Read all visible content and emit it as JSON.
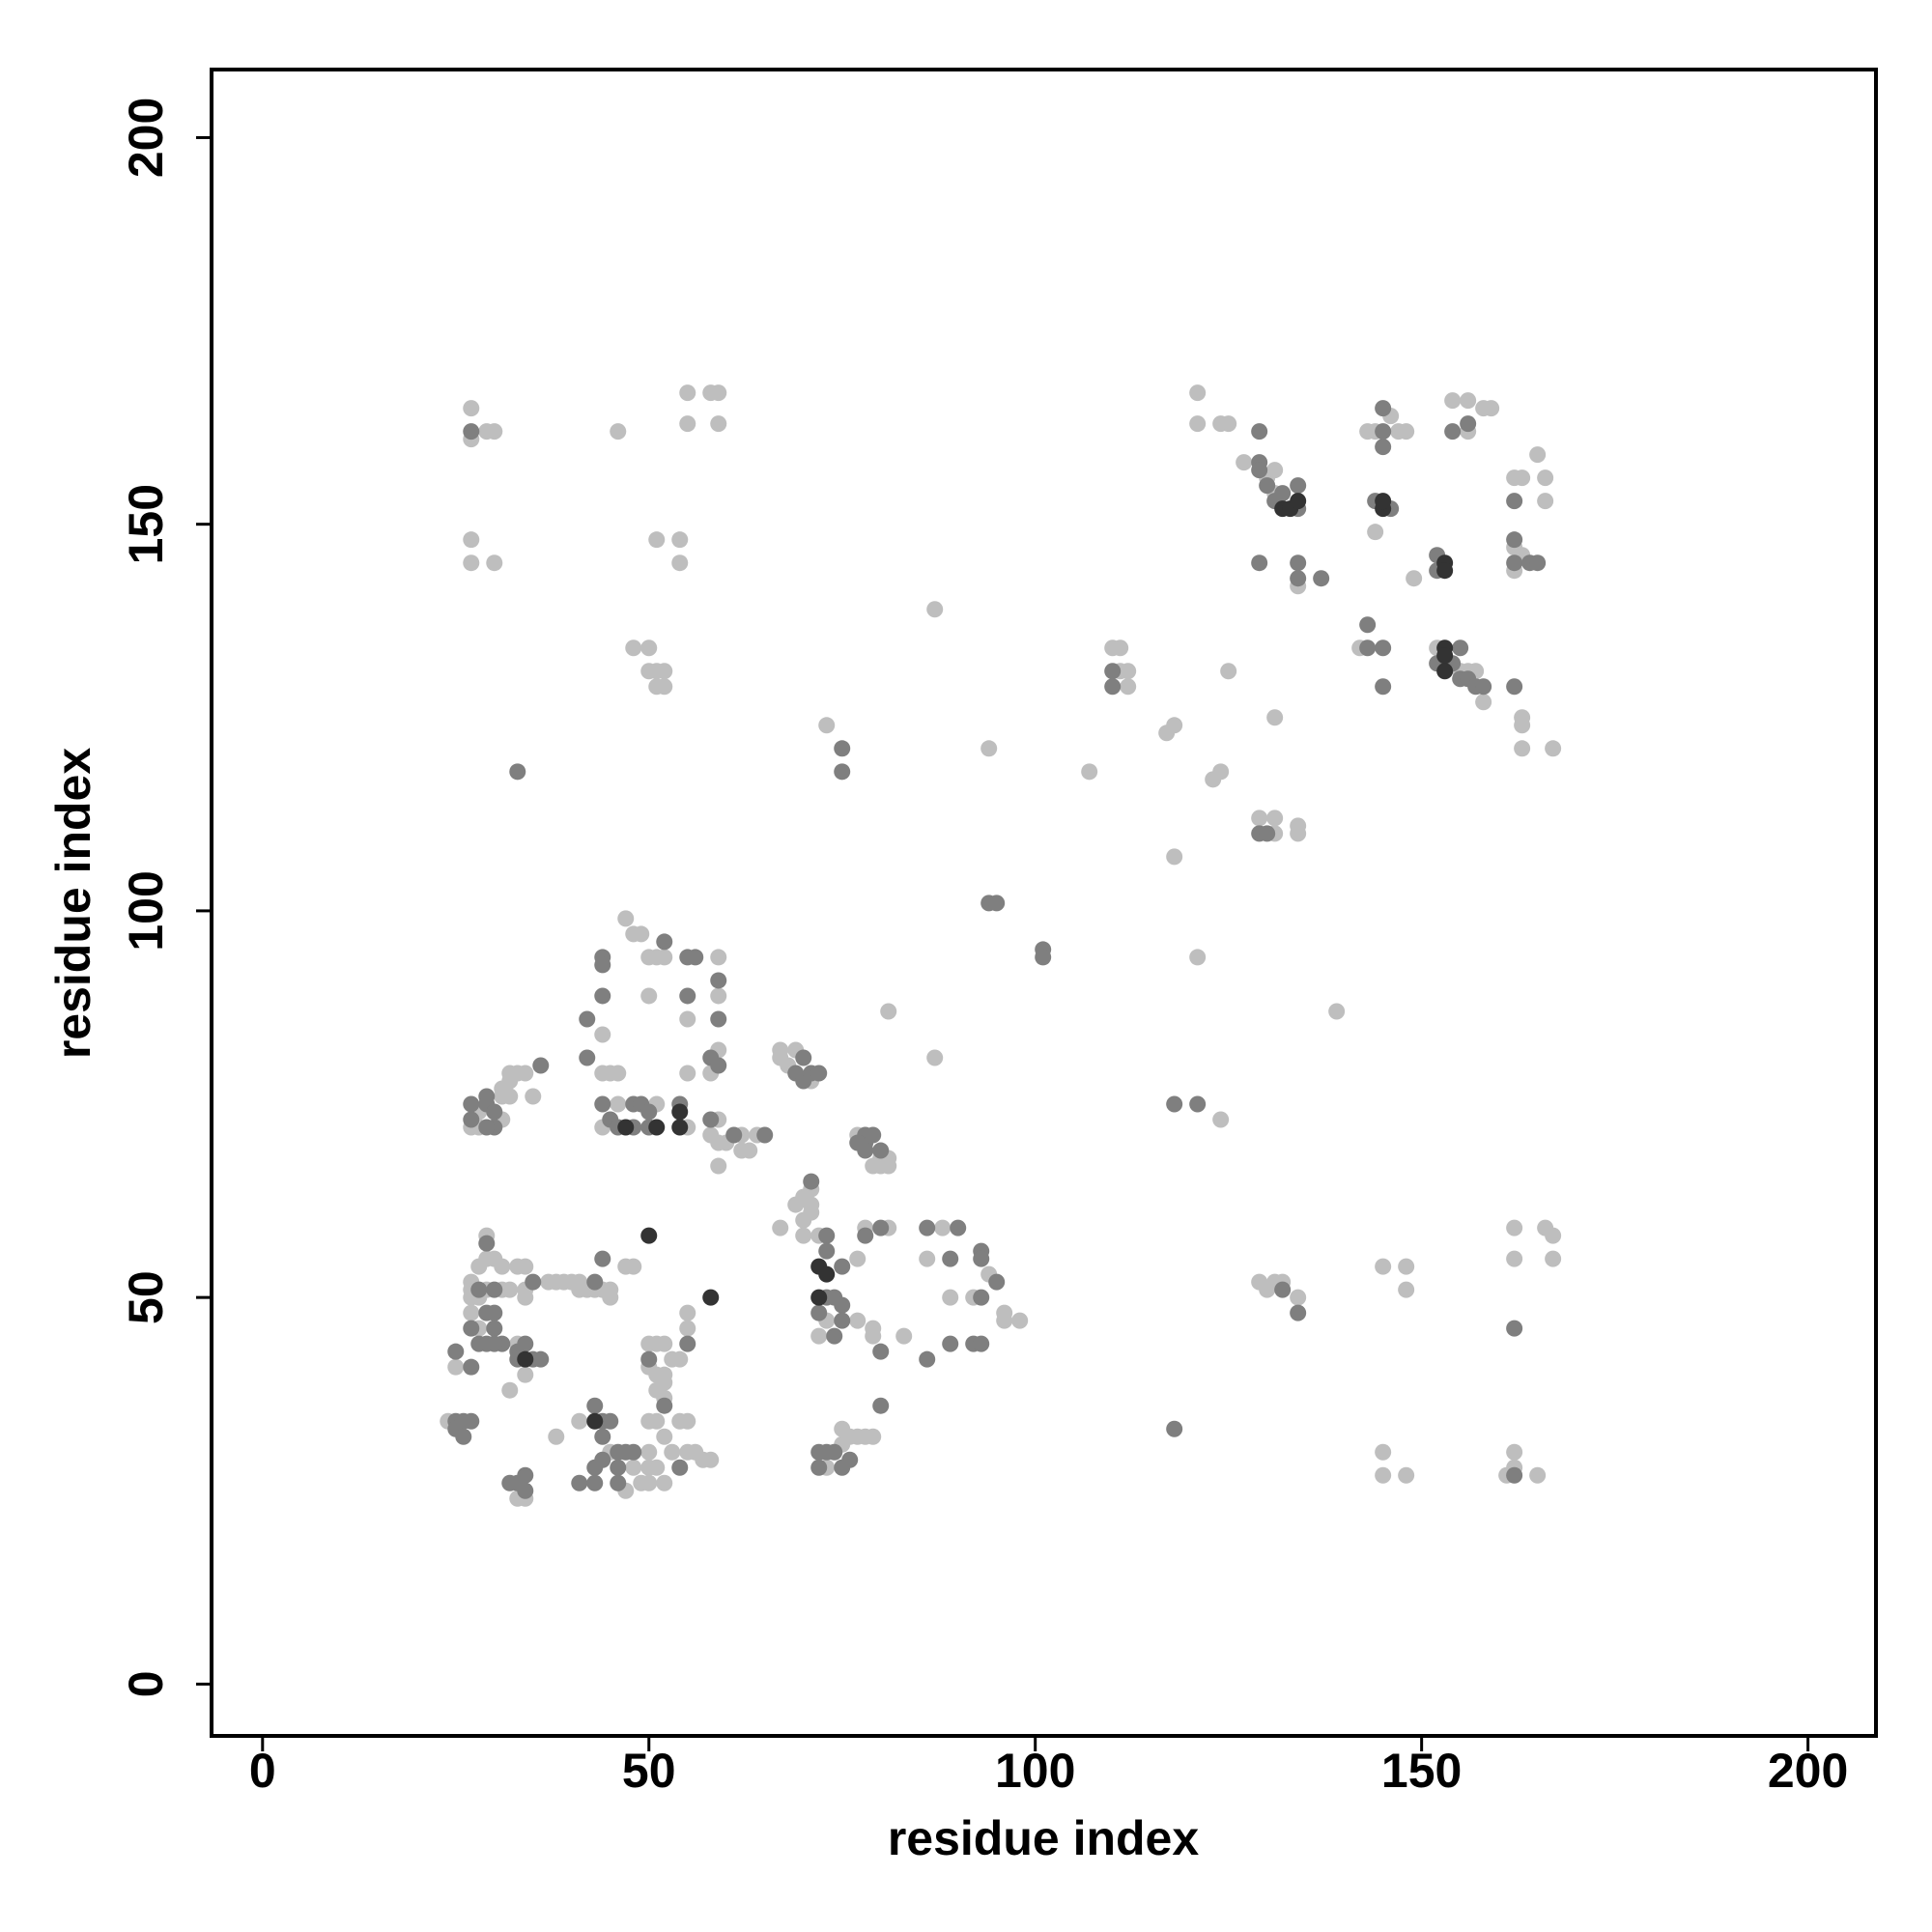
{
  "chart_data": {
    "type": "scatter",
    "xlabel": "residue index",
    "ylabel": "residue index",
    "xlim": [
      -6.6,
      208.8
    ],
    "ylim": [
      -6.7,
      208.8
    ],
    "xticks": [
      0,
      50,
      100,
      150,
      200
    ],
    "yticks": [
      0,
      50,
      100,
      150,
      200
    ],
    "grid": false,
    "series": [
      {
        "color": "#bebebe",
        "x": [
          27,
          27,
          29,
          30,
          46,
          55,
          55,
          58,
          59,
          59,
          27,
          27,
          30,
          51,
          54,
          54,
          48,
          50,
          50,
          51,
          52,
          51,
          52,
          73,
          87,
          94,
          107,
          124,
          121,
          118,
          81,
          87,
          139,
          117,
          118,
          123,
          124,
          125,
          110,
          111,
          111,
          112,
          112,
          129,
          131,
          131,
          134,
          134,
          131,
          121,
          121,
          124,
          125,
          127,
          130,
          131,
          131,
          134,
          143,
          144,
          146,
          147,
          148,
          144,
          149,
          142,
          152,
          155,
          156,
          157,
          158,
          154,
          156,
          156,
          158,
          159,
          162,
          163,
          165,
          166,
          166,
          162,
          162,
          163,
          163,
          163,
          163,
          167,
          162,
          162,
          166,
          167,
          167,
          145,
          148,
          148,
          145,
          145,
          148,
          161,
          162,
          162,
          165,
          129,
          130,
          131,
          132,
          134,
          44,
          44,
          45,
          46,
          47,
          48,
          49,
          50,
          51,
          52,
          59,
          59,
          50,
          55,
          59,
          58,
          55,
          44,
          46,
          51,
          55,
          59,
          58,
          59,
          59,
          60,
          62,
          62,
          63,
          64,
          67,
          67,
          69,
          68,
          71,
          77,
          80,
          81,
          81,
          80,
          79,
          71,
          70,
          69,
          71,
          71,
          70,
          67,
          70,
          72,
          73,
          72,
          77,
          79,
          79,
          83,
          78,
          81,
          77,
          88,
          86,
          94,
          92,
          89,
          96,
          96,
          98,
          29,
          29,
          30,
          28,
          31,
          33,
          34,
          27,
          27,
          27,
          28,
          29,
          31,
          32,
          34,
          34,
          37,
          38,
          39,
          40,
          41,
          41,
          42,
          43,
          44,
          45,
          45,
          47,
          48,
          27,
          28,
          33,
          25,
          34,
          32,
          50,
          51,
          52,
          50,
          51,
          52,
          52,
          51,
          52,
          53,
          54,
          55,
          55,
          24,
          41,
          38,
          45,
          48,
          50,
          51,
          52,
          54,
          55,
          53,
          55,
          56,
          57,
          58,
          50,
          51,
          50,
          49,
          33,
          34,
          47,
          50,
          52,
          73,
          75,
          75,
          76,
          77,
          78,
          79,
          27,
          28,
          28,
          31,
          31,
          32,
          32,
          33,
          34,
          35,
          32,
          31
        ],
        "values": [
          165,
          161,
          162,
          162,
          162,
          167,
          163,
          167,
          167,
          163,
          148,
          145,
          145,
          148,
          148,
          145,
          134,
          134,
          131,
          131,
          131,
          129,
          129,
          124,
          139,
          121,
          118,
          73,
          94,
          107,
          87,
          81,
          87,
          123,
          124,
          117,
          118,
          131,
          134,
          134,
          131,
          131,
          129,
          112,
          112,
          110,
          111,
          110,
          125,
          167,
          163,
          163,
          163,
          158,
          156,
          154,
          157,
          142,
          162,
          162,
          164,
          162,
          162,
          149,
          143,
          134,
          134,
          131,
          131,
          131,
          127,
          166,
          166,
          162,
          165,
          165,
          156,
          156,
          159,
          156,
          153,
          147,
          144,
          146,
          125,
          124,
          121,
          121,
          59,
          55,
          59,
          58,
          55,
          54,
          54,
          51,
          30,
          27,
          27,
          27,
          30,
          28,
          27,
          52,
          51,
          52,
          52,
          50,
          84,
          79,
          79,
          79,
          99,
          97,
          97,
          94,
          94,
          94,
          94,
          89,
          89,
          86,
          82,
          79,
          79,
          72,
          75,
          75,
          72,
          73,
          71,
          70,
          67,
          70,
          71,
          69,
          69,
          71,
          82,
          81,
          82,
          80,
          78,
          71,
          68,
          68,
          67,
          67,
          67,
          64,
          63,
          62,
          62,
          61,
          60,
          59,
          58,
          58,
          47,
          45,
          47,
          46,
          45,
          45,
          59,
          59,
          55,
          59,
          55,
          53,
          50,
          50,
          48,
          47,
          47,
          58,
          55,
          55,
          54,
          54,
          54,
          54,
          52,
          51,
          50,
          50,
          51,
          51,
          51,
          51,
          50,
          52,
          52,
          52,
          52,
          52,
          51,
          51,
          51,
          51,
          51,
          50,
          54,
          54,
          48,
          46,
          44,
          41,
          40,
          38,
          44,
          44,
          44,
          41,
          40,
          40,
          39,
          38,
          37,
          42,
          42,
          48,
          46,
          34,
          34,
          32,
          30,
          28,
          34,
          34,
          32,
          34,
          34,
          30,
          30,
          30,
          29,
          29,
          30,
          28,
          26,
          26,
          24,
          24,
          25,
          28,
          26,
          28,
          31,
          33,
          32,
          32,
          32,
          32,
          72,
          72,
          74,
          76,
          77,
          78,
          79,
          79,
          79,
          76,
          76,
          73
        ]
      },
      {
        "color": "#7f7f7f",
        "x": [
          27,
          33,
          75,
          75,
          94,
          95,
          101,
          101,
          118,
          121,
          110,
          110,
          129,
          130,
          129,
          129,
          129,
          130,
          131,
          132,
          134,
          134,
          129,
          134,
          134,
          137,
          145,
          145,
          145,
          144,
          146,
          143,
          143,
          145,
          145,
          152,
          154,
          155,
          155,
          156,
          157,
          158,
          152,
          152,
          156,
          154,
          162,
          162,
          162,
          164,
          165,
          162,
          162,
          162,
          118,
          132,
          134,
          44,
          44,
          44,
          42,
          42,
          52,
          55,
          56,
          59,
          55,
          59,
          58,
          59,
          44,
          45,
          46,
          48,
          48,
          49,
          50,
          50,
          54,
          58,
          61,
          65,
          70,
          69,
          70,
          71,
          72,
          78,
          78,
          79,
          78,
          80,
          77,
          71,
          73,
          73,
          75,
          73,
          74,
          75,
          72,
          75,
          74,
          80,
          86,
          78,
          80,
          86,
          90,
          89,
          93,
          93,
          95,
          93,
          89,
          92,
          93,
          29,
          28,
          30,
          35,
          43,
          44,
          29,
          30,
          27,
          30,
          28,
          29,
          31,
          30,
          33,
          34,
          35,
          36,
          33,
          25,
          27,
          50,
          52,
          55,
          25,
          26,
          27,
          25,
          26,
          43,
          44,
          45,
          44,
          44,
          46,
          47,
          48,
          46,
          46,
          54,
          43,
          41,
          43,
          32,
          33,
          34,
          34,
          72,
          73,
          74,
          72,
          75,
          76,
          80,
          27,
          27,
          29,
          29,
          30,
          30,
          29,
          36
        ],
        "values": [
          162,
          118,
          121,
          118,
          101,
          101,
          95,
          94,
          75,
          75,
          131,
          129,
          110,
          110,
          162,
          158,
          157,
          155,
          153,
          154,
          155,
          152,
          145,
          145,
          143,
          143,
          162,
          165,
          160,
          153,
          152,
          137,
          134,
          134,
          129,
          132,
          132,
          134,
          130,
          130,
          129,
          129,
          146,
          144,
          163,
          162,
          153,
          148,
          145,
          145,
          145,
          129,
          46,
          27,
          33,
          51,
          48,
          94,
          93,
          89,
          86,
          81,
          96,
          94,
          94,
          91,
          89,
          86,
          81,
          80,
          75,
          73,
          72,
          75,
          72,
          75,
          74,
          72,
          75,
          73,
          71,
          71,
          81,
          79,
          78,
          79,
          79,
          71,
          70,
          71,
          69,
          69,
          70,
          65,
          58,
          56,
          54,
          50,
          50,
          49,
          48,
          47,
          45,
          43,
          42,
          58,
          59,
          59,
          59,
          55,
          56,
          55,
          52,
          50,
          44,
          44,
          44,
          57,
          51,
          51,
          52,
          52,
          55,
          48,
          48,
          46,
          46,
          44,
          44,
          44,
          44,
          43,
          44,
          42,
          42,
          42,
          43,
          41,
          42,
          36,
          44,
          34,
          34,
          34,
          33,
          32,
          36,
          34,
          34,
          32,
          29,
          30,
          30,
          30,
          28,
          26,
          28,
          28,
          26,
          26,
          26,
          26,
          27,
          25,
          30,
          30,
          30,
          28,
          28,
          29,
          36,
          75,
          73,
          76,
          75,
          74,
          72,
          72,
          80
        ]
      },
      {
        "color": "#333333",
        "x": [
          132,
          133,
          134,
          145,
          145,
          153,
          153,
          153,
          153,
          153,
          72,
          73,
          72,
          58,
          50,
          47,
          51,
          54,
          54,
          34,
          43
        ],
        "values": [
          152,
          152,
          153,
          152,
          153,
          134,
          133,
          131,
          145,
          144,
          54,
          53,
          50,
          50,
          58,
          72,
          72,
          74,
          72,
          42,
          34
        ]
      }
    ]
  }
}
